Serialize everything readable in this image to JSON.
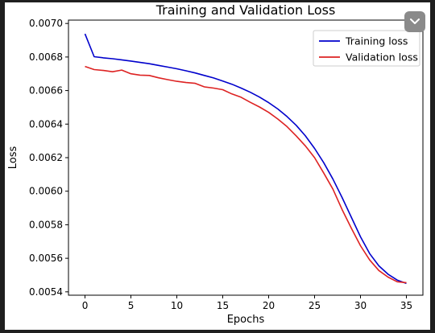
{
  "chart_data": {
    "type": "line",
    "title": "Training and Validation Loss",
    "xlabel": "Epochs",
    "ylabel": "Loss",
    "xlim": [
      -1.8,
      36.8
    ],
    "ylim": [
      0.00538,
      0.00702
    ],
    "xticks": [
      0,
      5,
      10,
      15,
      20,
      25,
      30,
      35
    ],
    "xtick_labels": [
      "0",
      "5",
      "10",
      "15",
      "20",
      "25",
      "30",
      "35"
    ],
    "yticks": [
      0.0054,
      0.0056,
      0.0058,
      0.006,
      0.0062,
      0.0064,
      0.0066,
      0.0068,
      0.007
    ],
    "ytick_labels": [
      "0.0054",
      "0.0056",
      "0.0058",
      "0.0060",
      "0.0062",
      "0.0064",
      "0.0066",
      "0.0068",
      "0.0070"
    ],
    "grid": false,
    "legend": "top-right",
    "x": [
      0,
      1,
      2,
      3,
      4,
      5,
      6,
      7,
      8,
      9,
      10,
      11,
      12,
      13,
      14,
      15,
      16,
      17,
      18,
      19,
      20,
      21,
      22,
      23,
      24,
      25,
      26,
      27,
      28,
      29,
      30,
      31,
      32,
      33,
      34,
      35
    ],
    "series": [
      {
        "name": "Training loss",
        "color": "#0000cc",
        "values": [
          0.006938,
          0.006802,
          0.006795,
          0.00679,
          0.006783,
          0.006776,
          0.006768,
          0.00676,
          0.00675,
          0.00674,
          0.00673,
          0.006718,
          0.006705,
          0.00669,
          0.006675,
          0.006657,
          0.006638,
          0.006615,
          0.00659,
          0.006561,
          0.006528,
          0.00649,
          0.006445,
          0.006393,
          0.00633,
          0.006255,
          0.00617,
          0.006072,
          0.005962,
          0.005845,
          0.005728,
          0.005628,
          0.005555,
          0.005505,
          0.00547,
          0.00545
        ]
      },
      {
        "name": "Validation loss",
        "color": "#dd2222",
        "values": [
          0.006744,
          0.006725,
          0.00672,
          0.006712,
          0.006722,
          0.0067,
          0.006692,
          0.00669,
          0.006676,
          0.006665,
          0.006655,
          0.006648,
          0.006643,
          0.006622,
          0.006615,
          0.006605,
          0.00658,
          0.00656,
          0.00653,
          0.006502,
          0.00647,
          0.00643,
          0.006385,
          0.00633,
          0.00627,
          0.0062,
          0.006108,
          0.006012,
          0.00589,
          0.00578,
          0.005675,
          0.00559,
          0.005527,
          0.005488,
          0.00546,
          0.005455
        ]
      }
    ]
  },
  "ui": {
    "collapse_icon": "chevron-down-icon",
    "background": "#1f1f1f",
    "button_color": "#8a8a8a"
  }
}
